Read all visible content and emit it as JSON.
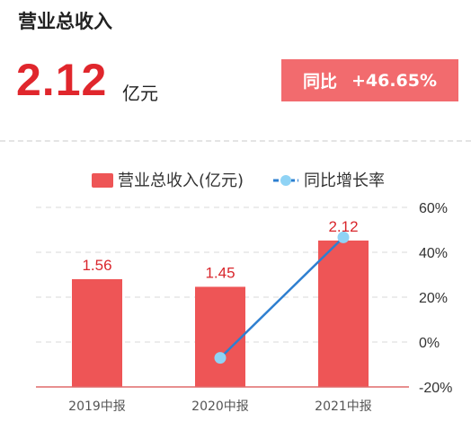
{
  "header": {
    "title": "营业总收入",
    "value": "2.12",
    "unit": "亿元",
    "yoy_label": "同比",
    "yoy_value": "+46.65%"
  },
  "colors": {
    "bar": "#ee5556",
    "line": "#2e7fd0",
    "point": "#8fd3f5",
    "accent": "#e0262c",
    "badge": "#f26b6e"
  },
  "chart_data": {
    "type": "bar",
    "categories": [
      "2019中报",
      "2020中报",
      "2021中报"
    ],
    "series": [
      {
        "name": "营业总收入(亿元)",
        "type": "bar",
        "values": [
          1.56,
          1.45,
          2.12
        ],
        "labels": [
          "1.56",
          "1.45",
          "2.12"
        ]
      },
      {
        "name": "同比增长率",
        "type": "line",
        "values": [
          null,
          -7.05,
          46.65
        ]
      }
    ],
    "right_axis": {
      "ticks": [
        "60%",
        "40%",
        "20%",
        "0%",
        "-20%"
      ],
      "ylim": [
        -20,
        60
      ]
    },
    "bar_axis": {
      "ylim": [
        0,
        2.6
      ]
    },
    "grid": true,
    "legend_position": "top"
  }
}
